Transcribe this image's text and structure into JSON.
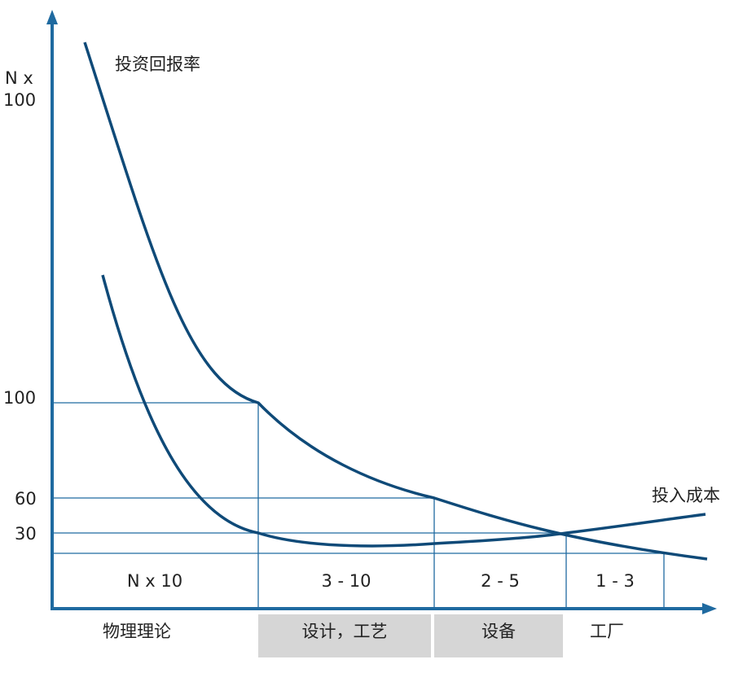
{
  "y_ticks": {
    "top": [
      "N x",
      "100"
    ],
    "t100": "100",
    "t60": "60",
    "t30": "30"
  },
  "curves": {
    "return": "投资回报率",
    "cost": "投入成本"
  },
  "cells": [
    "N x 10",
    "3 - 10",
    "2 - 5",
    "1 - 3"
  ],
  "phases": [
    "物理理论",
    "设计，工艺",
    "设备",
    "工厂"
  ],
  "colors": {
    "axis": "#1f6aa0",
    "curve": "#0f4a78",
    "grid": "#1f6aa0",
    "phase_bg": "#d6d6d6"
  }
}
